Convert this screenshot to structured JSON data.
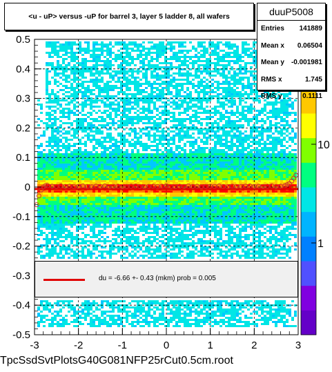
{
  "title": "<u - uP>       versus  -uP for barrel 3, layer 5 ladder 8, all wafers",
  "stats": {
    "name": "duuP5008",
    "rows": [
      {
        "label": "Entries",
        "value": "141889"
      },
      {
        "label": "Mean x",
        "value": "0.06504"
      },
      {
        "label": "Mean y",
        "value": "-0.001981"
      },
      {
        "label": "RMS x",
        "value": "1.745"
      },
      {
        "label": "RMS y",
        "value": "0.1111"
      }
    ]
  },
  "legend": {
    "text": "du =   -6.66 +-  0.43 (mkm) prob = 0.005",
    "color": "#e00000"
  },
  "filename": "TpcSsdSvtPlotsG40G081NFP25rCut0.5cm.root",
  "colors": {
    "fit_line": "#e00000",
    "marker": "#c83232",
    "palette": [
      "#ffffff",
      "#00e6e6",
      "#00c8ff",
      "#00ff80",
      "#80ff00",
      "#ffff00",
      "#ffc800",
      "#ff8000",
      "#ff0000",
      "#c800c8",
      "#6400c8"
    ]
  },
  "chart_data": {
    "type": "heatmap",
    "title": "<u - uP>       versus  -uP for barrel 3, layer 5 ladder 8, all wafers",
    "xlim": [
      -3,
      3
    ],
    "ylim": [
      -0.5,
      0.5
    ],
    "x_ticks": [
      -3,
      -2,
      -1,
      0,
      1,
      2,
      3
    ],
    "x_tick_labels": [
      "-3",
      "-2",
      "-1",
      "0",
      "1",
      "2",
      "3"
    ],
    "y_ticks": [
      -0.5,
      -0.4,
      -0.3,
      -0.2,
      -0.1,
      0,
      0.1,
      0.2,
      0.3,
      0.4,
      0.5
    ],
    "y_tick_labels": [
      "-0.5",
      "-0.4",
      "-0.3",
      "-0.2",
      "-0.1",
      "0",
      "0.1",
      "0.2",
      "0.3",
      "0.4",
      "0.5"
    ],
    "z_scale": "log",
    "z_ticks": [
      1,
      10
    ],
    "z_tick_labels": [
      "1",
      "10"
    ],
    "grid": true,
    "profile_points": {
      "x": [
        -2.95,
        -2.9,
        -2.85,
        -2.8,
        -2.75,
        -2.7,
        -2.6,
        -2.5,
        -2.4,
        -2.3,
        -2.2,
        -2.1,
        -2.0,
        -1.9,
        -1.8,
        -1.7,
        -1.6,
        -1.5,
        -1.4,
        -1.3,
        -1.2,
        -1.1,
        -1.0,
        -0.9,
        -0.8,
        -0.7,
        -0.6,
        -0.5,
        -0.4,
        -0.3,
        -0.2,
        -0.1,
        0.0,
        0.1,
        0.2,
        0.3,
        0.4,
        0.5,
        0.6,
        0.7,
        0.8,
        0.9,
        1.0,
        1.1,
        1.2,
        1.3,
        1.4,
        1.5,
        1.6,
        1.7,
        1.8,
        1.9,
        2.0,
        2.1,
        2.2,
        2.3,
        2.4,
        2.5,
        2.6,
        2.7,
        2.75,
        2.8,
        2.85,
        2.9,
        2.95
      ],
      "y": [
        -0.06,
        -0.03,
        -0.01,
        0.0,
        0.005,
        0.005,
        0.003,
        0.002,
        0.004,
        0.002,
        0.003,
        0.001,
        0.002,
        0.004,
        0.002,
        0.001,
        0.003,
        0.002,
        0.004,
        0.001,
        0.002,
        0.003,
        0.001,
        0.002,
        0.003,
        0.004,
        0.002,
        0.001,
        0.002,
        0.003,
        0.002,
        0.003,
        0.004,
        0.002,
        0.001,
        0.003,
        0.002,
        0.004,
        0.002,
        0.003,
        0.001,
        0.002,
        0.003,
        0.002,
        0.004,
        0.002,
        0.001,
        0.003,
        0.002,
        0.002,
        0.003,
        0.004,
        0.002,
        0.003,
        0.002,
        0.003,
        0.004,
        0.002,
        0.003,
        0.005,
        0.008,
        0.012,
        0.02,
        0.03,
        0.04
      ]
    },
    "fit": {
      "y": -0.00666,
      "x_range": [
        -3,
        3
      ]
    }
  }
}
